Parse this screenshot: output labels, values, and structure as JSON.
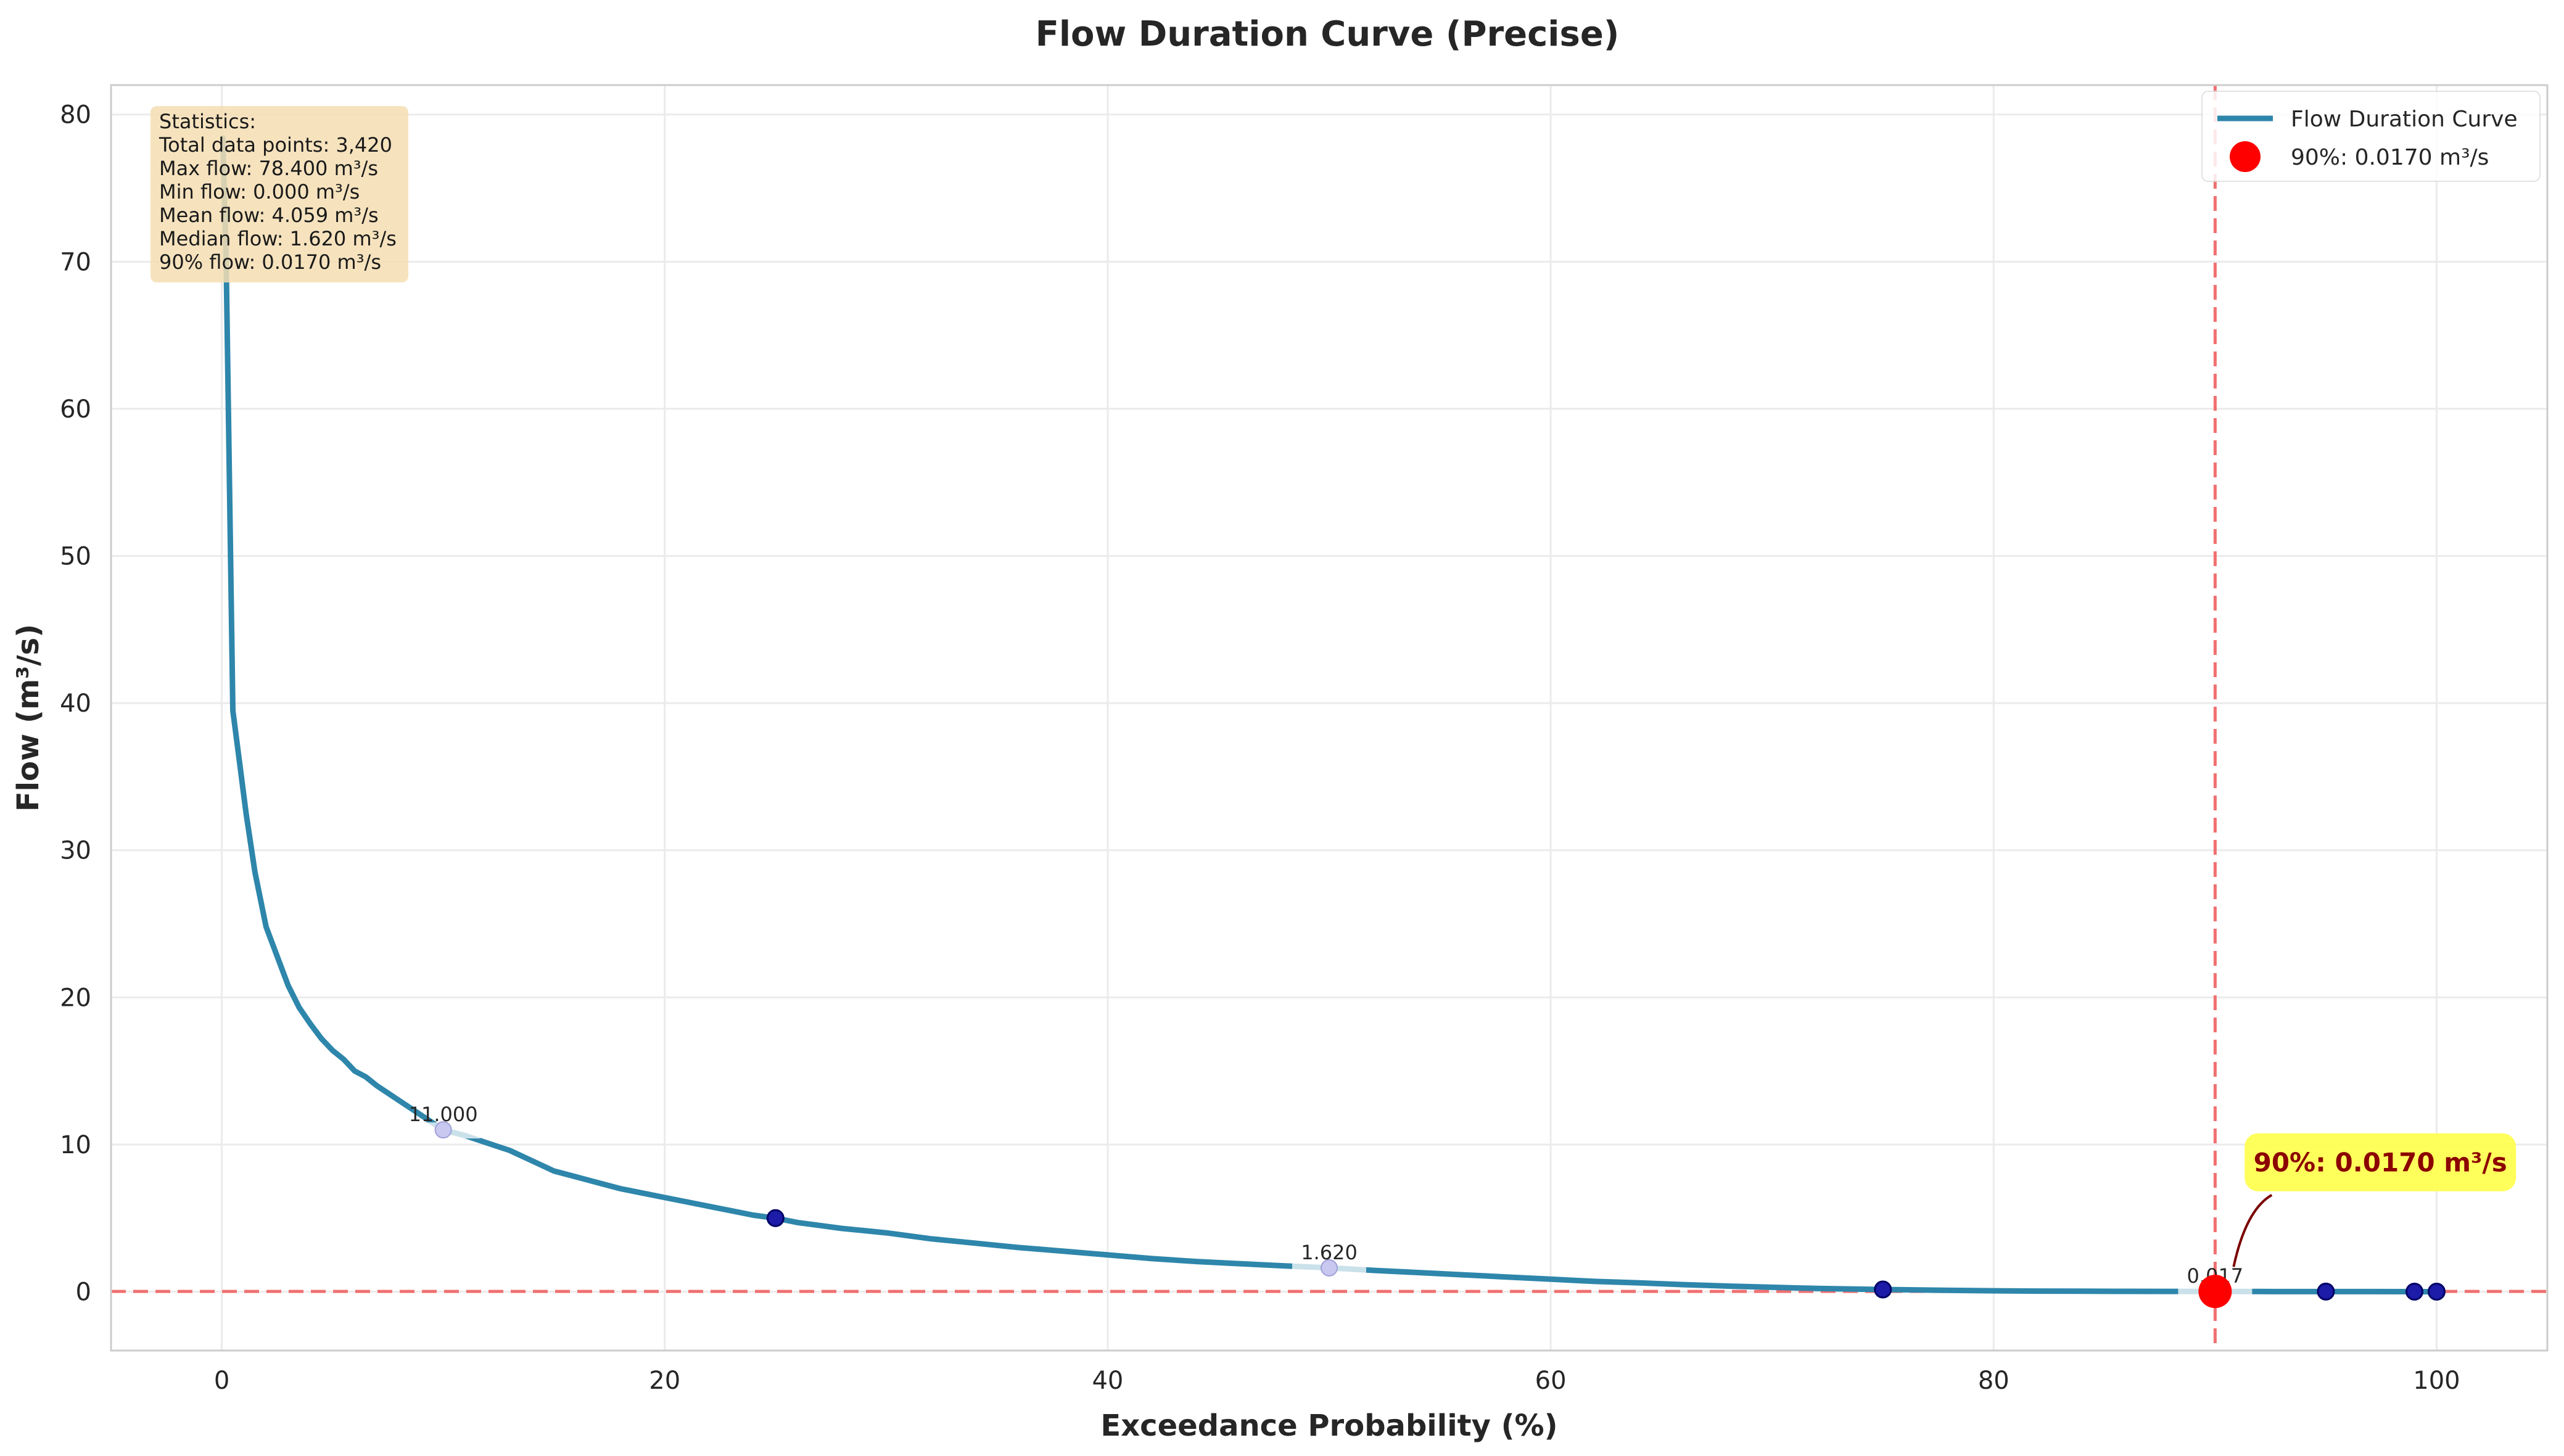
{
  "chart_data": {
    "type": "line",
    "title": "Flow Duration Curve (Precise)",
    "xlabel": "Exceedance Probability (%)",
    "ylabel": "Flow (m³/s)",
    "xlim": [
      -5,
      105
    ],
    "ylim": [
      -4,
      82
    ],
    "x_ticks": [
      0,
      20,
      40,
      60,
      80,
      100
    ],
    "y_ticks": [
      0,
      10,
      20,
      30,
      40,
      50,
      60,
      70,
      80
    ],
    "grid": true,
    "legend_position": "top-right",
    "legend": [
      {
        "label": "Flow Duration Curve",
        "kind": "line"
      },
      {
        "label": "90%: 0.0170 m³/s",
        "kind": "marker"
      }
    ],
    "series": [
      {
        "name": "Flow Duration Curve",
        "color": "#2e86ab",
        "x": [
          0.05,
          0.2,
          0.5,
          0.8,
          1.1,
          1.5,
          2.0,
          2.5,
          3.0,
          3.5,
          4.0,
          4.5,
          5.0,
          5.5,
          6.0,
          6.5,
          7.0,
          8.0,
          9.0,
          10.0,
          11.0,
          12.0,
          13.0,
          14.0,
          15.0,
          16.0,
          17.0,
          18.0,
          19.0,
          20.0,
          21.0,
          22.0,
          23.0,
          24.0,
          25.0,
          26.0,
          27.0,
          28.0,
          29.0,
          30.0,
          32.0,
          34.0,
          36.0,
          38.0,
          40.0,
          42.0,
          44.0,
          46.0,
          48.0,
          50.0,
          52.0,
          54.0,
          56.0,
          58.0,
          60.0,
          62.0,
          64.0,
          66.0,
          68.0,
          70.0,
          72.0,
          75.0,
          78.0,
          80.0,
          82.0,
          84.0,
          86.0,
          88.0,
          90.0,
          92.0,
          95.0,
          97.0,
          99.0,
          100.0
        ],
        "values": [
          78.4,
          70.0,
          39.5,
          36.0,
          32.5,
          28.5,
          24.8,
          22.8,
          20.8,
          19.3,
          18.2,
          17.2,
          16.4,
          15.8,
          15.0,
          14.6,
          14.0,
          13.0,
          12.0,
          11.0,
          10.6,
          10.1,
          9.6,
          8.9,
          8.2,
          7.8,
          7.4,
          7.0,
          6.7,
          6.4,
          6.1,
          5.8,
          5.5,
          5.2,
          5.0,
          4.7,
          4.5,
          4.3,
          4.15,
          4.0,
          3.6,
          3.3,
          3.0,
          2.75,
          2.5,
          2.25,
          2.05,
          1.9,
          1.75,
          1.62,
          1.45,
          1.3,
          1.15,
          1.0,
          0.85,
          0.7,
          0.6,
          0.48,
          0.38,
          0.3,
          0.22,
          0.15,
          0.09,
          0.06,
          0.04,
          0.03,
          0.025,
          0.02,
          0.017,
          0.012,
          0.008,
          0.005,
          0.002,
          0.0
        ]
      }
    ],
    "markers": [
      {
        "x": 10,
        "y": 11.0,
        "label": "11.000"
      },
      {
        "x": 25,
        "y": 5.0,
        "label": ""
      },
      {
        "x": 50,
        "y": 1.62,
        "label": "1.620"
      },
      {
        "x": 75,
        "y": 0.15,
        "label": ""
      },
      {
        "x": 90,
        "y": 0.017,
        "label": "0.017"
      },
      {
        "x": 95,
        "y": 0.008,
        "label": ""
      },
      {
        "x": 99,
        "y": 0.002,
        "label": ""
      },
      {
        "x": 100,
        "y": 0.0,
        "label": ""
      }
    ],
    "highlight": {
      "x": 90,
      "y": 0.017,
      "color": "#ff0000"
    },
    "reference_lines": {
      "vertical_x": 90,
      "horizontal_y": 0.017,
      "color": "#f07070"
    },
    "annotation": {
      "text": "90%: 0.0170 m³/s",
      "x": 90,
      "y": 0.017,
      "text_x": 92,
      "text_y": 8.5
    },
    "stats_box": {
      "lines": [
        "Statistics:",
        "Total data points: 3,420",
        "Max flow: 78.400 m³/s",
        "Min flow: 0.000 m³/s",
        "Mean flow: 4.059 m³/s",
        "Median flow: 1.620 m³/s",
        "90% flow: 0.0170 m³/s"
      ]
    }
  }
}
